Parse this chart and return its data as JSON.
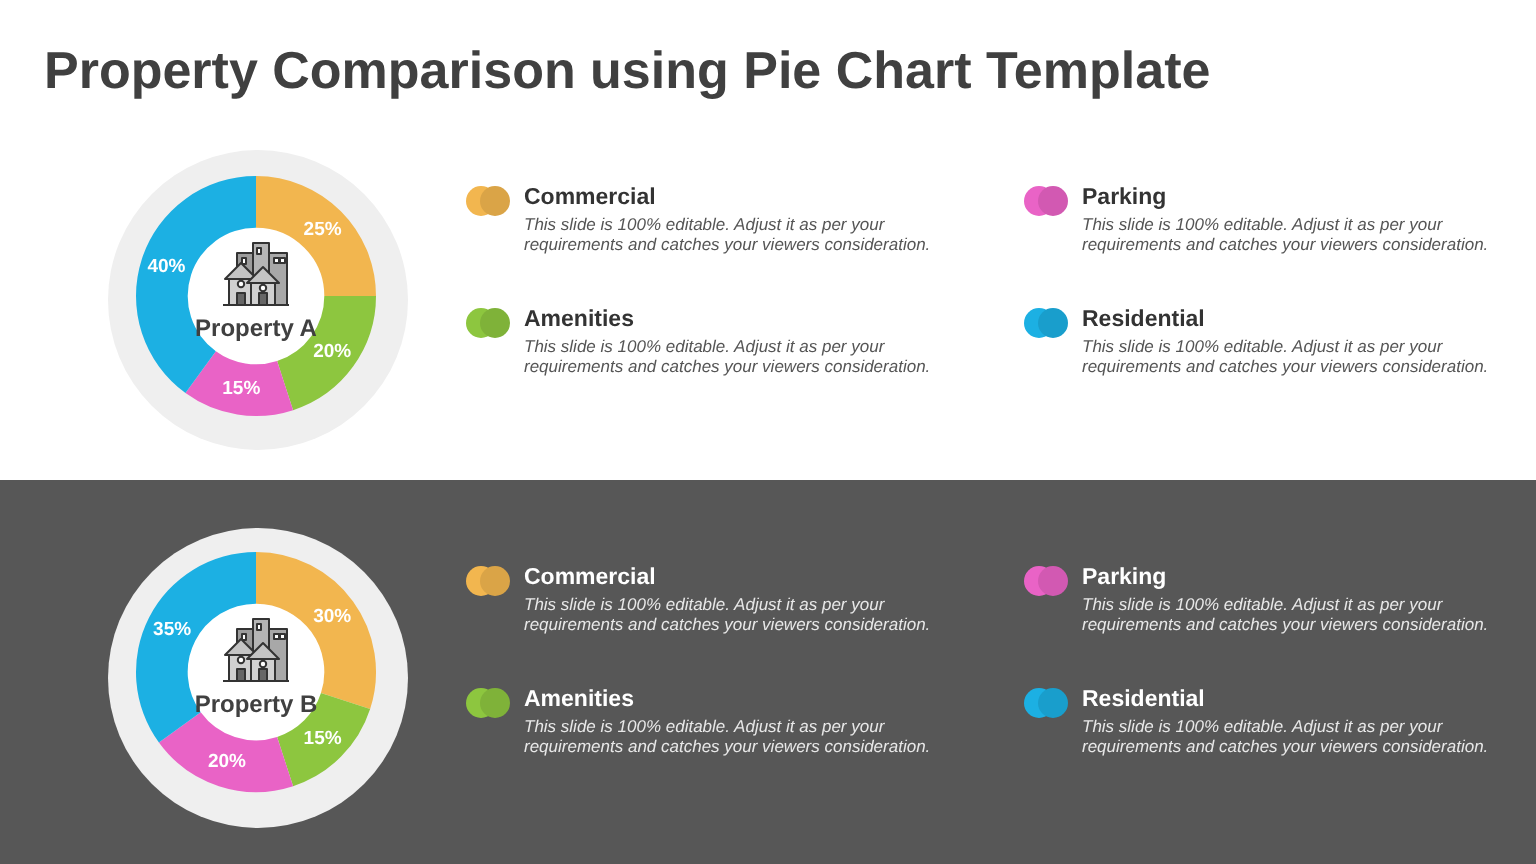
{
  "chart_data": [
    {
      "type": "donut",
      "title": "Property Comparison using Pie Chart Template",
      "categories": [
        "Commercial",
        "Amenities",
        "Parking",
        "Residential"
      ],
      "values": [
        25,
        20,
        15,
        40
      ],
      "value_labels": [
        "25%",
        "20%",
        "15%",
        "40%"
      ],
      "colors": [
        "#f2b64f",
        "#8dc63f",
        "#e963c6",
        "#1cb0e3"
      ],
      "legend": "right",
      "annotations": [
        "Property A",
        "This slide is 100% editable. Adjust it as per your requirements and catches your viewers consideration.",
        "This slide is 100% editable. Adjust it as per your requirements and catches your viewers consideration.",
        "This slide is 100% editable. Adjust it as per your requirements and catches your viewers consideration.",
        "This slide is 100% editable. Adjust it as per your requirements and catches your viewers consideration."
      ]
    },
    {
      "type": "donut",
      "categories": [
        "Commercial",
        "Amenities",
        "Parking",
        "Residential"
      ],
      "values": [
        30,
        15,
        20,
        35
      ],
      "value_labels": [
        "30%",
        "15%",
        "20%",
        "35%"
      ],
      "colors": [
        "#f2b64f",
        "#8dc63f",
        "#e963c6",
        "#1cb0e3"
      ],
      "legend": "right",
      "annotations": [
        "Property B",
        "This slide is 100% editable. Adjust it as per your requirements and catches your viewers consideration.",
        "This slide is 100% editable. Adjust it as per your requirements and catches your viewers consideration.",
        "This slide is 100% editable. Adjust it as per your requirements and catches your viewers consideration.",
        "This slide is 100% editable. Adjust it as per your requirements and catches your viewers consideration."
      ]
    }
  ]
}
